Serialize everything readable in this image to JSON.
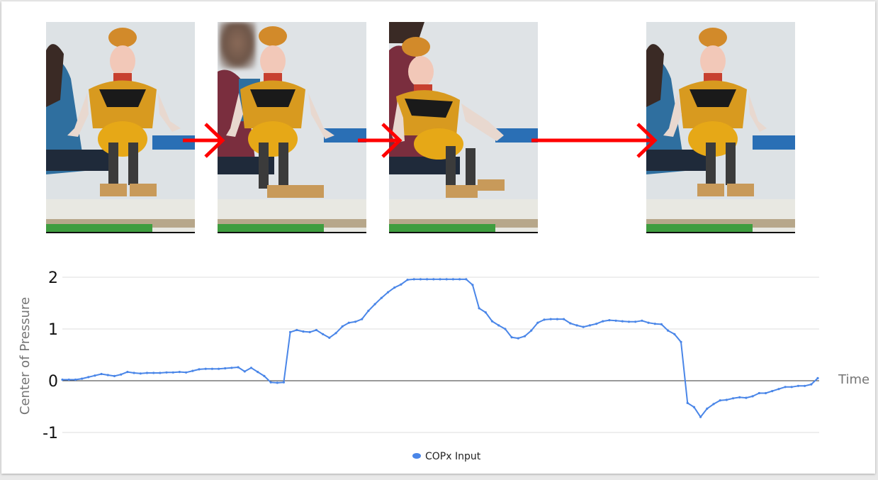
{
  "figure": {
    "panels": [
      {
        "id": "frame-1",
        "content": "robot-dancer-photo"
      },
      {
        "id": "frame-2",
        "content": "robot-dancer-photo"
      },
      {
        "id": "frame-3",
        "content": "robot-dancer-photo"
      },
      {
        "id": "frame-4",
        "content": "robot-dancer-photo"
      }
    ],
    "arrow_color": "#ff0000"
  },
  "chart_data": {
    "type": "line",
    "title": "",
    "xlabel": "Time",
    "ylabel": "Center of Pressure",
    "ylim": [
      -1.1,
      2.1
    ],
    "yticks": [
      2,
      1,
      0,
      -1
    ],
    "ytick_labels": [
      "2",
      "1",
      "0",
      "-1"
    ],
    "grid": true,
    "legend_position": "bottom-center",
    "series": [
      {
        "name": "COPx Input",
        "color": "#4a86e8",
        "values": [
          0.02,
          0.02,
          0.02,
          0.04,
          0.07,
          0.1,
          0.13,
          0.11,
          0.09,
          0.12,
          0.17,
          0.15,
          0.14,
          0.15,
          0.15,
          0.15,
          0.16,
          0.16,
          0.17,
          0.16,
          0.19,
          0.22,
          0.23,
          0.23,
          0.23,
          0.24,
          0.25,
          0.26,
          0.18,
          0.25,
          0.17,
          0.09,
          -0.03,
          -0.04,
          -0.03,
          0.94,
          0.98,
          0.95,
          0.94,
          0.98,
          0.9,
          0.83,
          0.92,
          1.05,
          1.12,
          1.14,
          1.19,
          1.35,
          1.48,
          1.6,
          1.71,
          1.8,
          1.86,
          1.95,
          1.96,
          1.96,
          1.96,
          1.96,
          1.96,
          1.96,
          1.96,
          1.96,
          1.96,
          1.85,
          1.4,
          1.32,
          1.15,
          1.07,
          1.0,
          0.84,
          0.82,
          0.86,
          0.97,
          1.12,
          1.18,
          1.19,
          1.19,
          1.19,
          1.11,
          1.07,
          1.04,
          1.07,
          1.1,
          1.15,
          1.17,
          1.16,
          1.15,
          1.14,
          1.14,
          1.16,
          1.12,
          1.1,
          1.09,
          0.97,
          0.9,
          0.75,
          -0.43,
          -0.51,
          -0.7,
          -0.54,
          -0.45,
          -0.38,
          -0.37,
          -0.34,
          -0.32,
          -0.33,
          -0.3,
          -0.24,
          -0.24,
          -0.2,
          -0.16,
          -0.12,
          -0.12,
          -0.1,
          -0.1,
          -0.07,
          0.05
        ]
      }
    ]
  }
}
